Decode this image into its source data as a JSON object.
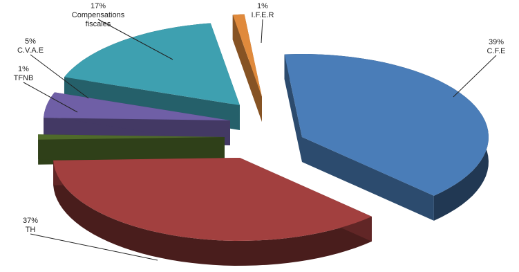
{
  "chart_data": {
    "type": "pie",
    "style": "3d-exploded",
    "slices": [
      {
        "label": "C.F.E",
        "value": 39,
        "percent_label": "39%",
        "color": "#4a7db8"
      },
      {
        "label": "TH",
        "value": 37,
        "percent_label": "37%",
        "color": "#a2403f"
      },
      {
        "label": "TFNB",
        "value": 1,
        "percent_label": "1%",
        "color": "#4f6a2a"
      },
      {
        "label": "C.V.A.E",
        "value": 5,
        "percent_label": "5%",
        "color": "#6f5fa6"
      },
      {
        "label": "Compensations\nfiscales",
        "value": 17,
        "percent_label": "17%",
        "color": "#3ea0b0"
      },
      {
        "label": "I.F.E.R",
        "value": 1,
        "percent_label": "1%",
        "color": "#e08a3c"
      }
    ]
  }
}
